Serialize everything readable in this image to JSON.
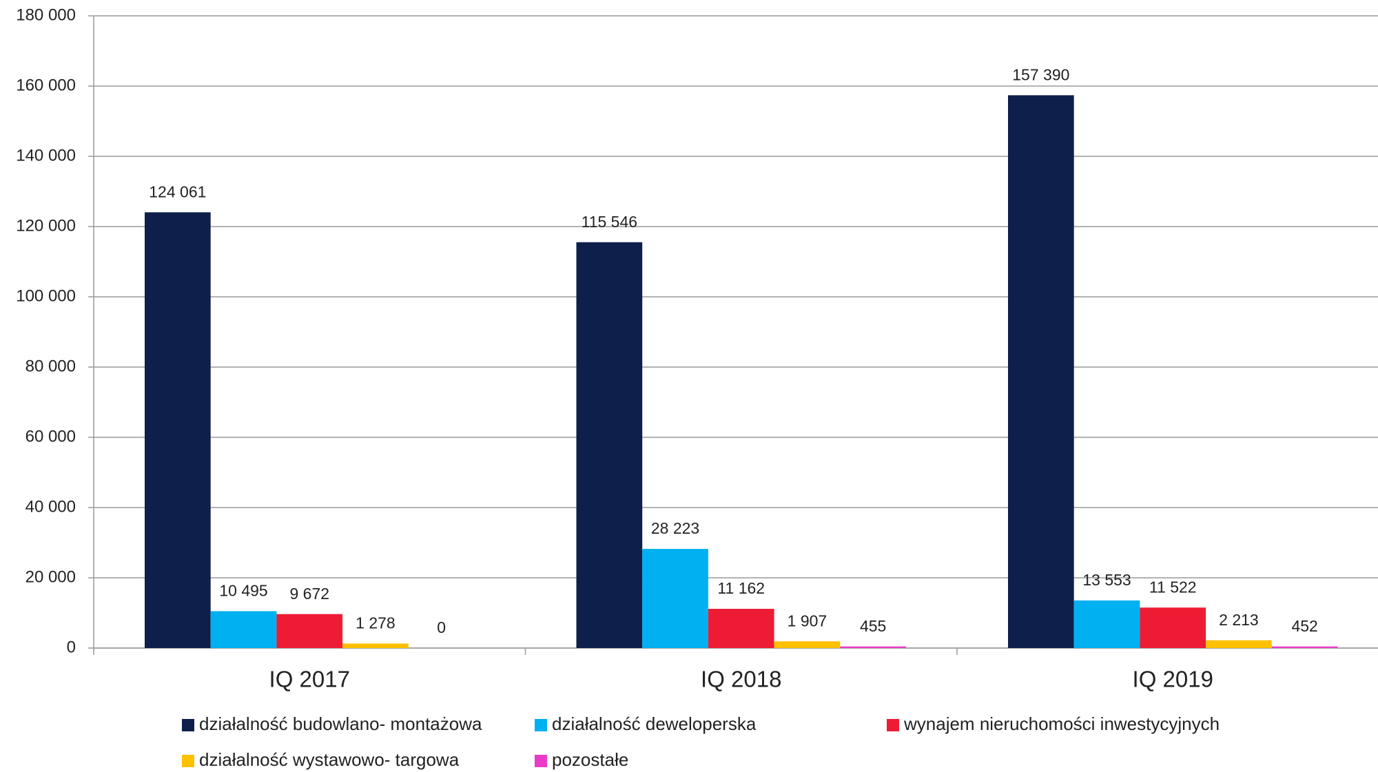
{
  "chart_data": {
    "type": "bar",
    "categories": [
      "IQ 2017",
      "IQ 2018",
      "IQ 2019"
    ],
    "series": [
      {
        "name": "działalność budowlano- montażowa",
        "color": "#0d1f4a",
        "values": [
          124061,
          115546,
          157390
        ],
        "value_labels": [
          "124 061",
          "115 546",
          "157 390"
        ]
      },
      {
        "name": "działalność deweloperska",
        "color": "#00b0f0",
        "values": [
          10495,
          28223,
          13553
        ],
        "value_labels": [
          "10 495",
          "28 223",
          "13 553"
        ]
      },
      {
        "name": "wynajem nieruchomości inwestycyjnych",
        "color": "#ed1c34",
        "values": [
          9672,
          11162,
          11522
        ],
        "value_labels": [
          "9 672",
          "11 162",
          "11 522"
        ]
      },
      {
        "name": "działalność wystawowo- targowa",
        "color": "#ffc000",
        "values": [
          1278,
          1907,
          2213
        ],
        "value_labels": [
          "1 278",
          "1 907",
          "2 213"
        ]
      },
      {
        "name": "pozostałe",
        "color": "#e83cc8",
        "values": [
          0,
          455,
          452
        ],
        "value_labels": [
          "0",
          "455",
          "452"
        ]
      }
    ],
    "ylim": [
      0,
      180000
    ],
    "yticks": [
      0,
      {
        "value": 20000,
        "label": "20 000"
      },
      {
        "value": 40000,
        "label": "40 000"
      },
      {
        "value": 60000,
        "label": "60 000"
      },
      {
        "value": 80000,
        "label": "80 000"
      },
      {
        "value": 100000,
        "label": "100 000"
      },
      {
        "value": 120000,
        "label": "120 000"
      },
      {
        "value": 140000,
        "label": "140 000"
      },
      {
        "value": 160000,
        "label": "160 000"
      },
      {
        "value": 180000,
        "label": "180 000"
      }
    ],
    "grid": true,
    "legend": "bottom"
  }
}
